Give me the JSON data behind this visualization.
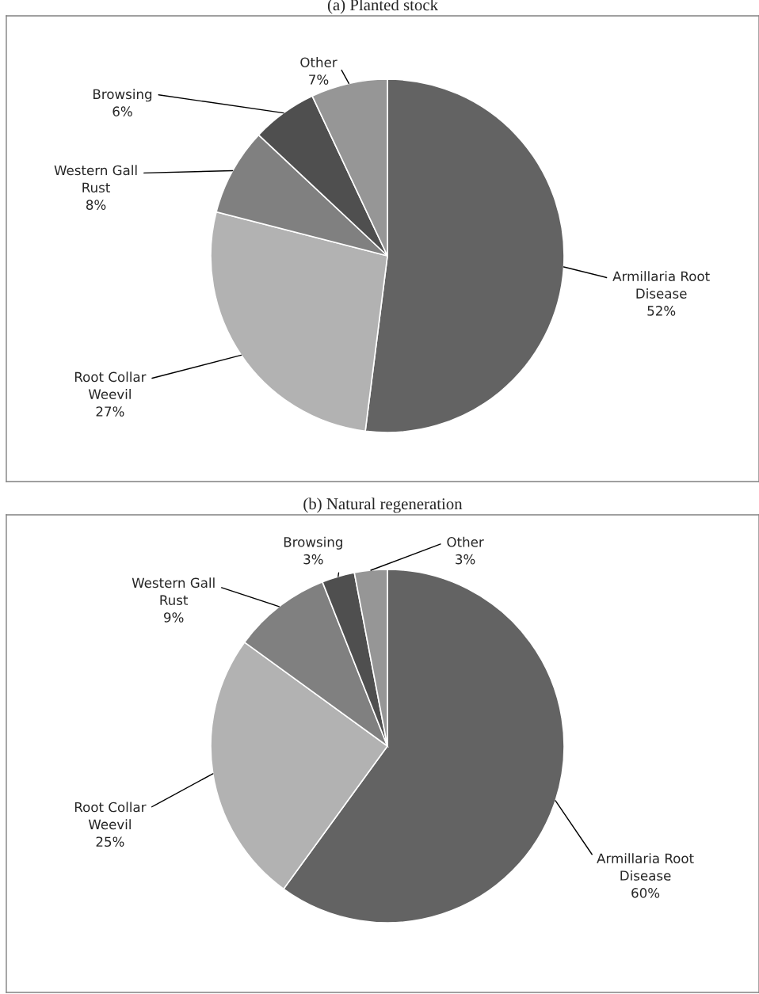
{
  "chart_data": [
    {
      "type": "pie",
      "title": "(a) Planted stock",
      "categories": [
        "Armillaria Root\nDisease",
        "Root Collar\nWeevil",
        "Western Gall\nRust",
        "Browsing",
        "Other"
      ],
      "values": [
        52,
        27,
        8,
        6,
        7
      ],
      "colors": [
        "#636363",
        "#b2b2b2",
        "#808080",
        "#4f4f4f",
        "#969696"
      ],
      "value_labels": [
        "52%",
        "27%",
        "8%",
        "6%",
        "7%"
      ]
    },
    {
      "type": "pie",
      "title": "(b) Natural regeneration",
      "categories": [
        "Armillaria Root\nDisease",
        "Root Collar\nWeevil",
        "Western Gall\nRust",
        "Browsing",
        "Other"
      ],
      "values": [
        60,
        25,
        9,
        3,
        3
      ],
      "colors": [
        "#636363",
        "#b2b2b2",
        "#808080",
        "#4f4f4f",
        "#969696"
      ],
      "value_labels": [
        "60%",
        "25%",
        "9%",
        "3%",
        "3%"
      ]
    }
  ]
}
